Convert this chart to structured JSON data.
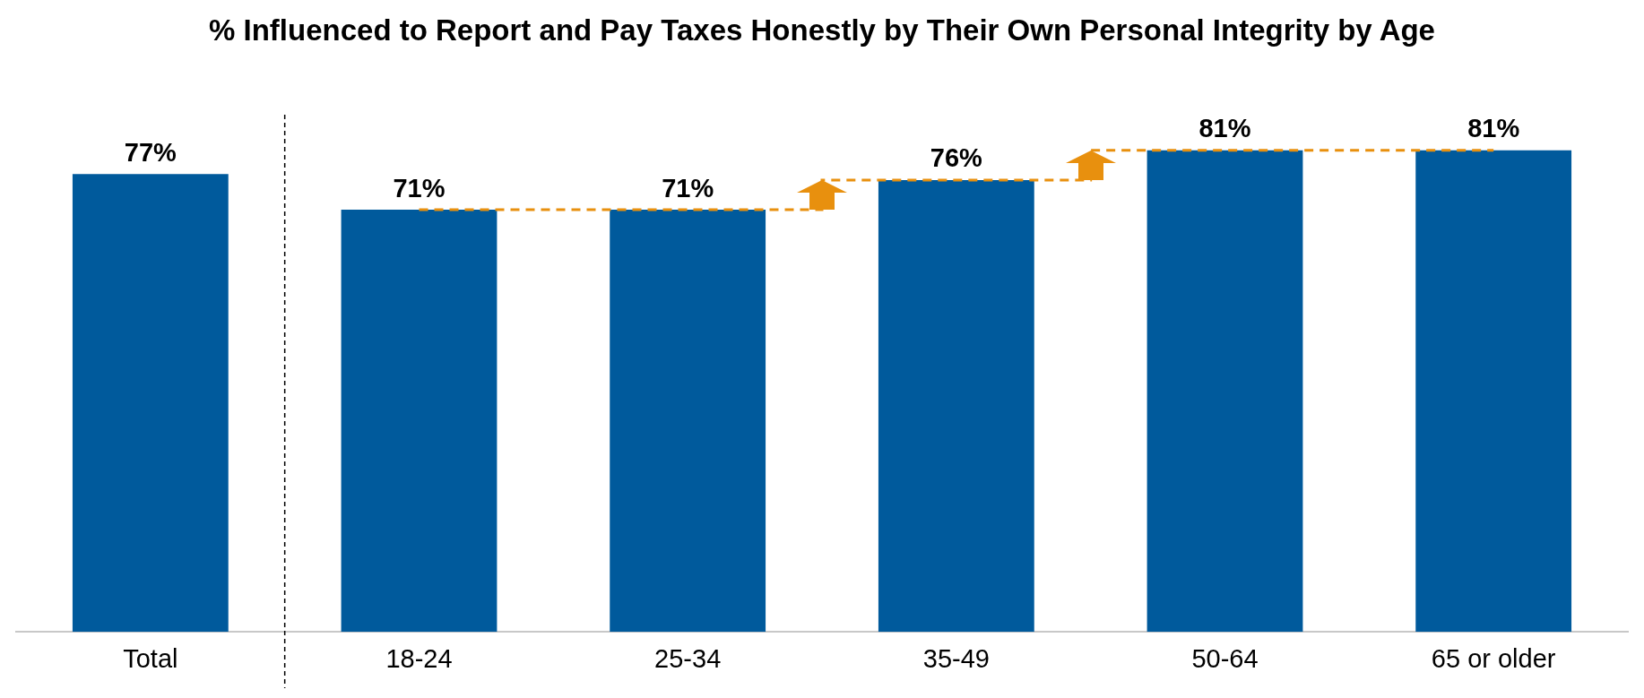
{
  "chart_data": {
    "type": "bar",
    "title": "% Influenced to Report and Pay Taxes Honestly by Their Own Personal Integrity by Age",
    "categories": [
      "Total",
      "18-24",
      "25-34",
      "35-49",
      "50-64",
      "65 or older"
    ],
    "series": [
      {
        "color": "#005a9c",
        "values": [
          77,
          71,
          71,
          76,
          81,
          81
        ],
        "value_labels": [
          "77%",
          "71%",
          "71%",
          "76%",
          "81%",
          "81%"
        ]
      },
      {
        "type": "step",
        "color": "#e8900e",
        "values": [
          null,
          71,
          71,
          76,
          81,
          81
        ],
        "line_style": "dashed",
        "marker": "none"
      }
    ],
    "grid": false,
    "legend": false
  }
}
